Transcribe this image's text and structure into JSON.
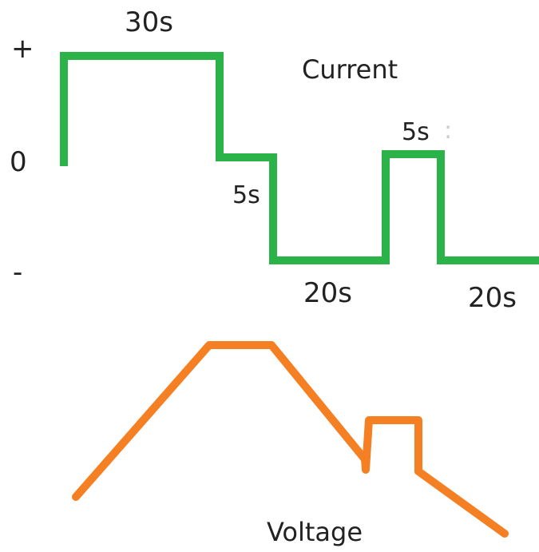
{
  "colors": {
    "current": "#2bb34a",
    "voltage": "#f57f23",
    "text": "#222222",
    "background": "#ffffff"
  },
  "axis_labels": {
    "plus": "+",
    "zero": "0",
    "minus": "-"
  },
  "titles": {
    "current": "Current",
    "voltage": "Voltage"
  },
  "segments": {
    "positive": "30s",
    "zero": "5s",
    "negative_first": "20s",
    "positive_pulse": "5s",
    "pulse_mark": ":",
    "negative_second": "20s"
  }
}
